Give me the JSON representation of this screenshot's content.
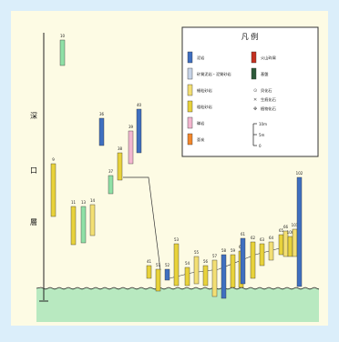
{
  "legend": {
    "title": "凡 例",
    "items": [
      {
        "label": "泥岩",
        "color": "#3f6fc0",
        "kind": "swatch"
      },
      {
        "label": "砂質泥岩・泥質砂岩",
        "color": "#c7d4e8",
        "kind": "swatch"
      },
      {
        "label": "細粒砂岩",
        "color": "#f3df73",
        "kind": "swatch"
      },
      {
        "label": "粗粒砂岩",
        "color": "#e8d23a",
        "kind": "swatch"
      },
      {
        "label": "礫岩",
        "color": "#f2b6cf",
        "kind": "swatch"
      },
      {
        "label": "亜炭",
        "color": "#f2872b",
        "kind": "swatch"
      },
      {
        "label": "火山砕屑",
        "color": "#c43020",
        "kind": "swatch"
      },
      {
        "label": "基盤",
        "color": "#2d5a3a",
        "kind": "swatch"
      },
      {
        "label": "貝化石",
        "color": "#555555",
        "kind": "symbol"
      },
      {
        "label": "生痕化石",
        "color": "#555555",
        "kind": "symbol"
      },
      {
        "label": "植物化石",
        "color": "#555555",
        "kind": "symbol"
      }
    ],
    "scale": {
      "labels": [
        "10m",
        "5m",
        "0"
      ]
    }
  },
  "axis": {
    "chars": [
      "深",
      "口",
      "層"
    ]
  },
  "colors": {
    "page_bg": "#dbeefa",
    "panel_bg": "#fdfbe4",
    "green": "#b8e9c0",
    "mudstone": "#3f6fc0",
    "sandy_mud": "#c7d4e8",
    "fine_sand": "#f3df73",
    "coarse_sand": "#e8d23a",
    "conglomerate": "#f2b6cf",
    "lignite": "#f2872b",
    "basement": "#2d5a3a",
    "light_green": "#8fe0a6"
  },
  "columns": [
    {
      "label": "10",
      "color": "light_green"
    },
    {
      "label": "9",
      "color": "coarse_sand"
    },
    {
      "label": "11",
      "color": "coarse_sand"
    },
    {
      "label": "13",
      "color": "light_green"
    },
    {
      "label": "14",
      "color": "fine_sand"
    },
    {
      "label": "36",
      "color": "mudstone"
    },
    {
      "label": "37",
      "color": "light_green"
    },
    {
      "label": "38",
      "color": "coarse_sand"
    },
    {
      "label": "39",
      "color": "conglomerate"
    },
    {
      "label": "40",
      "color": "mudstone"
    },
    {
      "label": "41",
      "color": "coarse_sand"
    },
    {
      "label": "51",
      "color": "coarse_sand"
    },
    {
      "label": "52",
      "color": "mudstone"
    },
    {
      "label": "53",
      "color": "coarse_sand"
    },
    {
      "label": "54",
      "color": "coarse_sand"
    },
    {
      "label": "55",
      "color": "fine_sand"
    },
    {
      "label": "56",
      "color": "coarse_sand"
    },
    {
      "label": "57",
      "color": "fine_sand"
    },
    {
      "label": "58",
      "color": "mudstone"
    },
    {
      "label": "59",
      "color": "coarse_sand"
    },
    {
      "label": "60",
      "color": "coarse_sand"
    },
    {
      "label": "61",
      "color": "mudstone"
    },
    {
      "label": "62",
      "color": "coarse_sand"
    },
    {
      "label": "63",
      "color": "coarse_sand"
    },
    {
      "label": "64",
      "color": "fine_sand"
    },
    {
      "label": "65",
      "color": "coarse_sand"
    },
    {
      "label": "66",
      "color": "fine_sand"
    },
    {
      "label": "100",
      "color": "coarse_sand"
    },
    {
      "label": "101",
      "color": "fine_sand"
    },
    {
      "label": "102",
      "color": "mudstone"
    }
  ]
}
